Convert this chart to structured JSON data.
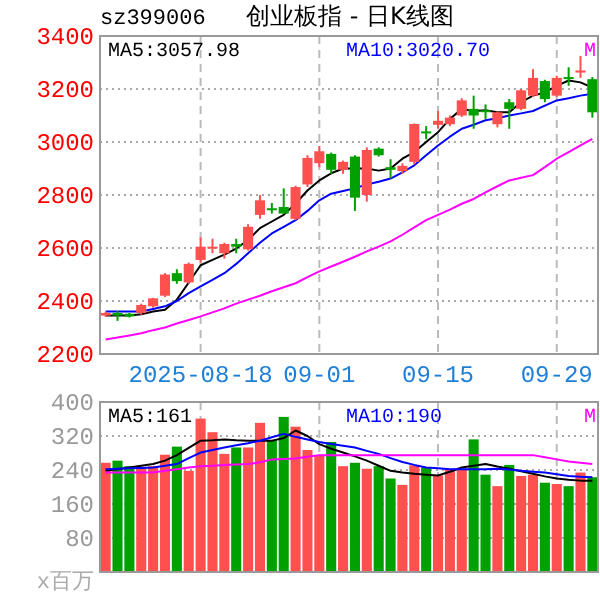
{
  "chart_data": [
    {
      "type": "candlestick",
      "title": "创业板指 - 日K线图",
      "subtitle": "sz399006",
      "categories": [
        null,
        null,
        null,
        null,
        null,
        null,
        null,
        null,
        "2025-08-18",
        null,
        null,
        null,
        null,
        null,
        null,
        null,
        null,
        null,
        "09-01",
        null,
        null,
        null,
        null,
        null,
        null,
        null,
        null,
        null,
        "09-15",
        null,
        null,
        null,
        null,
        null,
        null,
        null,
        null,
        null,
        "09-29",
        null,
        null,
        null
      ],
      "ohlc": [
        [
          2345,
          2360,
          2340,
          2355
        ],
        [
          2355,
          2362,
          2325,
          2345
        ],
        [
          2352,
          2355,
          2338,
          2342
        ],
        [
          2355,
          2390,
          2348,
          2385
        ],
        [
          2380,
          2412,
          2375,
          2410
        ],
        [
          2420,
          2505,
          2415,
          2500
        ],
        [
          2505,
          2520,
          2465,
          2475
        ],
        [
          2470,
          2545,
          2465,
          2540
        ],
        [
          2555,
          2640,
          2545,
          2605
        ],
        [
          2600,
          2635,
          2580,
          2605
        ],
        [
          2580,
          2620,
          2560,
          2615
        ],
        [
          2615,
          2635,
          2580,
          2605
        ],
        [
          2595,
          2690,
          2590,
          2680
        ],
        [
          2725,
          2800,
          2710,
          2780
        ],
        [
          2750,
          2770,
          2730,
          2745
        ],
        [
          2755,
          2825,
          2730,
          2730
        ],
        [
          2710,
          2835,
          2705,
          2830
        ],
        [
          2840,
          2950,
          2830,
          2940
        ],
        [
          2920,
          2985,
          2905,
          2965
        ],
        [
          2955,
          2960,
          2880,
          2895
        ],
        [
          2895,
          2930,
          2880,
          2925
        ],
        [
          2945,
          2950,
          2740,
          2790
        ],
        [
          2800,
          2980,
          2775,
          2970
        ],
        [
          2975,
          2980,
          2945,
          2950
        ],
        [
          2905,
          2935,
          2862,
          2895
        ],
        [
          2890,
          2920,
          2880,
          2910
        ],
        [
          2925,
          3070,
          2915,
          3068
        ],
        [
          3040,
          3060,
          3010,
          3035
        ],
        [
          3065,
          3117,
          3050,
          3080
        ],
        [
          3067,
          3100,
          3060,
          3092
        ],
        [
          3100,
          3165,
          3095,
          3157
        ],
        [
          3125,
          3175,
          3050,
          3100
        ],
        [
          3120,
          3142,
          3087,
          3115
        ],
        [
          3067,
          3115,
          3055,
          3112
        ],
        [
          3150,
          3162,
          3050,
          3125
        ],
        [
          3125,
          3200,
          3120,
          3195
        ],
        [
          3175,
          3275,
          3170,
          3242
        ],
        [
          3230,
          3235,
          3150,
          3162
        ],
        [
          3175,
          3250,
          3170,
          3242
        ],
        [
          3245,
          3282,
          3212,
          3240
        ],
        [
          3262,
          3325,
          3242,
          3270
        ],
        [
          3237,
          3245,
          3092,
          3112
        ]
      ],
      "colors": [
        "#ff5050",
        "#00a000",
        "#00a000",
        "#ff5050",
        "#ff5050",
        "#ff5050",
        "#00a000",
        "#ff5050",
        "#ff5050",
        "#ff5050",
        "#ff5050",
        "#00a000",
        "#ff5050",
        "#ff5050",
        "#00a000",
        "#00a000",
        "#ff5050",
        "#ff5050",
        "#ff5050",
        "#00a000",
        "#ff5050",
        "#00a000",
        "#ff5050",
        "#00a000",
        "#00a000",
        "#ff5050",
        "#ff5050",
        "#00a000",
        "#ff5050",
        "#ff5050",
        "#ff5050",
        "#00a000",
        "#00a000",
        "#ff5050",
        "#00a000",
        "#ff5050",
        "#ff5050",
        "#00a000",
        "#ff5050",
        "#00a000",
        "#ff5050",
        "#00a000"
      ],
      "series": [
        {
          "type": "line",
          "name": "MA5:3057.98",
          "color": "#000000",
          "values": [
            2345,
            2345,
            2345,
            2350,
            2360,
            2367,
            2405,
            2470,
            2535,
            2555,
            2575,
            2598,
            2630,
            2675,
            2700,
            2725,
            2768,
            2817,
            2855,
            2882,
            2900,
            2900,
            2900,
            2892,
            2900,
            2937,
            2962,
            3000,
            3037,
            3087,
            3125,
            3117,
            3120,
            3112,
            3112,
            3150,
            3175,
            3187,
            3212,
            3232,
            3225,
            3205
          ]
        },
        {
          "type": "line",
          "name": "MA10:3020.70",
          "color": "#0000ff",
          "values": [
            2360,
            2360,
            2360,
            2360,
            2370,
            2380,
            2400,
            2430,
            2455,
            2480,
            2505,
            2540,
            2580,
            2620,
            2655,
            2680,
            2705,
            2740,
            2780,
            2805,
            2815,
            2825,
            2840,
            2850,
            2862,
            2885,
            2912,
            2950,
            2987,
            3020,
            3050,
            3065,
            3082,
            3090,
            3100,
            3108,
            3117,
            3137,
            3157,
            3165,
            3175,
            3182
          ]
        },
        {
          "type": "line",
          "name": "M",
          "color": "#ff00ff",
          "values": [
            2255,
            2262,
            2270,
            2278,
            2290,
            2300,
            2315,
            2328,
            2342,
            2357,
            2372,
            2390,
            2405,
            2420,
            2437,
            2452,
            2467,
            2490,
            2512,
            2530,
            2548,
            2567,
            2587,
            2605,
            2625,
            2650,
            2678,
            2705,
            2725,
            2745,
            2767,
            2785,
            2810,
            2833,
            2855,
            2865,
            2875,
            2905,
            2937,
            2962,
            2987,
            3012
          ]
        }
      ],
      "ylim": [
        2200,
        3400
      ],
      "yticks": [
        2200,
        2400,
        2600,
        2800,
        3000,
        3200,
        3400
      ],
      "grid": true,
      "legend": "top"
    },
    {
      "type": "bar",
      "ylabel": "x百万",
      "categories": [
        null,
        null,
        null,
        null,
        null,
        null,
        null,
        null,
        null,
        null,
        null,
        null,
        null,
        null,
        null,
        null,
        null,
        null,
        null,
        null,
        null,
        null,
        null,
        null,
        null,
        null,
        null,
        null,
        null,
        null,
        null,
        null,
        null,
        null,
        null,
        null,
        null,
        null,
        null,
        null,
        null,
        null
      ],
      "series": [
        {
          "type": "bar",
          "values": [
            257,
            262,
            249,
            246,
            249,
            276,
            295,
            238,
            361,
            329,
            278,
            293,
            293,
            351,
            309,
            365,
            342,
            287,
            273,
            306,
            249,
            257,
            243,
            249,
            220,
            205,
            251,
            246,
            227,
            243,
            243,
            312,
            229,
            202,
            252,
            226,
            229,
            210,
            207,
            202,
            234,
            223
          ],
          "colors": [
            "#ff5050",
            "#00a000",
            "#00a000",
            "#ff5050",
            "#ff5050",
            "#ff5050",
            "#00a000",
            "#ff5050",
            "#ff5050",
            "#ff5050",
            "#ff5050",
            "#00a000",
            "#ff5050",
            "#ff5050",
            "#00a000",
            "#00a000",
            "#ff5050",
            "#ff5050",
            "#ff5050",
            "#00a000",
            "#ff5050",
            "#00a000",
            "#ff5050",
            "#00a000",
            "#00a000",
            "#ff5050",
            "#ff5050",
            "#00a000",
            "#ff5050",
            "#ff5050",
            "#ff5050",
            "#00a000",
            "#00a000",
            "#ff5050",
            "#00a000",
            "#ff5050",
            "#ff5050",
            "#00a000",
            "#ff5050",
            "#00a000",
            "#ff5050",
            "#00a000"
          ]
        },
        {
          "type": "line",
          "name": "MA5:161",
          "color": "#000000",
          "values": [
            238,
            242,
            246,
            250,
            254,
            262,
            275,
            292,
            309,
            310,
            312,
            310,
            309,
            309,
            309,
            315,
            333,
            320,
            301,
            290,
            281,
            272,
            262,
            250,
            238,
            234,
            231,
            229,
            227,
            236,
            246,
            250,
            254,
            248,
            243,
            237,
            231,
            225,
            220,
            217,
            215,
            215
          ]
        },
        {
          "type": "line",
          "name": "MA10:190",
          "color": "#0000ff",
          "values": [
            242,
            243,
            244,
            245,
            246,
            250,
            254,
            268,
            281,
            287,
            293,
            298,
            303,
            309,
            317,
            325,
            318,
            312,
            306,
            301,
            297,
            293,
            285,
            278,
            268,
            259,
            252,
            246,
            244,
            242,
            242,
            242,
            242,
            243,
            241,
            238,
            236,
            234,
            230,
            226,
            224,
            223
          ]
        },
        {
          "type": "line",
          "name": "M",
          "color": "#ff00ff",
          "values": [
            234,
            234,
            234,
            234,
            234,
            238,
            242,
            246,
            249,
            250,
            252,
            253,
            254,
            258,
            265,
            266,
            267,
            271,
            275,
            275,
            275,
            275,
            275,
            275,
            275,
            275,
            275,
            275,
            275,
            275,
            275,
            275,
            275,
            275,
            275,
            275,
            275,
            270,
            265,
            260,
            257,
            254
          ]
        }
      ],
      "ylim": [
        0,
        400
      ],
      "yticks": [
        80,
        160,
        240,
        320,
        400
      ],
      "grid": true,
      "legend": "top",
      "tick_labels": "y"
    }
  ]
}
